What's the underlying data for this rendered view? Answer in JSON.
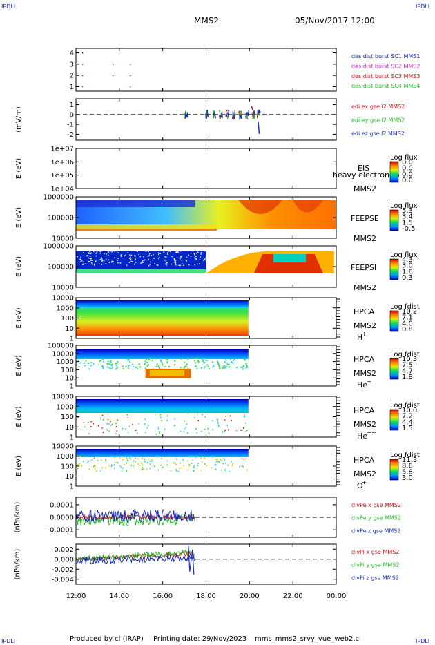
{
  "corner_label": "IPDLI",
  "header": {
    "spacecraft": "MMS2",
    "datetime": "05/Nov/2017 12:00"
  },
  "footer": {
    "produced_by": "Produced by cl (IRAP)",
    "printing_date": "Printing date: 29/Nov/2023",
    "file": "mms_mms2_srvy_vue_web2.cl"
  },
  "chart_data": {
    "type": "stacked_timeseries",
    "x_ticks": [
      "12:00",
      "14:00",
      "16:00",
      "18:00",
      "20:00",
      "22:00",
      "00:00"
    ],
    "x_range_hours": [
      12,
      24
    ],
    "panels": [
      {
        "id": "des-dist",
        "type": "scatter",
        "ylabel": "",
        "yticks": [
          "1",
          "2",
          "3",
          "4"
        ],
        "ylim": [
          0.6,
          4.4
        ],
        "legend": [
          {
            "text": "des dist burst SC1 MMS1",
            "color": "#1a2bbf"
          },
          {
            "text": "des dist burst SC2 MMS2",
            "color": "#cc22cc"
          },
          {
            "text": "des dist burst SC3 MMS3",
            "color": "#cc1111"
          },
          {
            "text": "des dist burst SC4 MMS4",
            "color": "#22bb22"
          }
        ],
        "points": [
          {
            "t": 12.3,
            "y": 4,
            "color": "#1a2bbf"
          },
          {
            "t": 12.3,
            "y": 3,
            "color": "#cc22cc"
          },
          {
            "t": 12.3,
            "y": 2,
            "color": "#cc1111"
          },
          {
            "t": 12.3,
            "y": 1,
            "color": "#22bb22"
          },
          {
            "t": 13.7,
            "y": 3,
            "color": "#cc22cc"
          },
          {
            "t": 13.7,
            "y": 2,
            "color": "#cc1111"
          },
          {
            "t": 14.5,
            "y": 3,
            "color": "#cc22cc"
          },
          {
            "t": 14.5,
            "y": 2,
            "color": "#cc1111"
          },
          {
            "t": 14.5,
            "y": 1,
            "color": "#22bb22"
          }
        ]
      },
      {
        "id": "edi-e",
        "type": "line",
        "ylabel": "(mV/m)",
        "yticks": [
          "1",
          "0",
          "-1",
          "-2"
        ],
        "ylim": [
          -2.6,
          1.6
        ],
        "legend": [
          {
            "text": "edi ex gse l2 MMS2",
            "color": "#cc1111"
          },
          {
            "text": "edi ey gse l2 MMS2",
            "color": "#22bb22"
          },
          {
            "text": "edi ez gse l2 MMS2",
            "color": "#1a2bbf"
          }
        ]
      },
      {
        "id": "eis",
        "type": "spectrogram",
        "ylabel": "E (eV)",
        "yticks": [
          "1e+07",
          "1e+06",
          "1e+05",
          "1e+04"
        ],
        "labels": [
          "EIS",
          "MMS2"
        ],
        "overlay_text": "heavy electron to",
        "colorbar": {
          "title": "Log flux",
          "ticks": [
            "0.0",
            "0.0",
            "0.0",
            "0.0"
          ]
        }
      },
      {
        "id": "feepse",
        "type": "spectrogram",
        "ylabel": "E (eV)",
        "yticks": [
          "1000000",
          "100000",
          "10000"
        ],
        "labels": [
          "FEEPSE",
          "MMS2"
        ],
        "colorbar": {
          "title": "Log flux",
          "ticks": [
            "5.3",
            "3.4",
            "1.5",
            "-0.5"
          ]
        }
      },
      {
        "id": "feepsi",
        "type": "spectrogram",
        "ylabel": "E (eV)",
        "yticks": [
          "1000000",
          "100000",
          "10000"
        ],
        "labels": [
          "FEEPSI",
          "MMS2"
        ],
        "colorbar": {
          "title": "Log flux",
          "ticks": [
            "4.3",
            "3.0",
            "1.6",
            "0.3"
          ]
        }
      },
      {
        "id": "hpca-h",
        "type": "spectrogram",
        "ylabel": "E (eV)",
        "yticks": [
          "10000",
          "1000",
          "100",
          "10",
          "1"
        ],
        "labels": [
          "HPCA",
          "MMS2"
        ],
        "species": "H",
        "species_charge": "+",
        "colorbar": {
          "title": "Log fdist",
          "ticks": [
            "10.2",
            "7.1",
            "4.0",
            "0.8"
          ]
        }
      },
      {
        "id": "hpca-he1",
        "type": "spectrogram",
        "ylabel": "E (eV)",
        "yticks": [
          "100000",
          "10000",
          "1000",
          "100",
          "10",
          "1"
        ],
        "labels": [
          "HPCA",
          "MMS2"
        ],
        "species": "He",
        "species_charge": "+",
        "colorbar": {
          "title": "Log fdist",
          "ticks": [
            "10.3",
            "7.5",
            "4.7",
            "1.8"
          ]
        }
      },
      {
        "id": "hpca-he2",
        "type": "spectrogram",
        "ylabel": "E (eV)",
        "yticks": [
          "10000",
          "1000",
          "100",
          "10",
          "1"
        ],
        "labels": [
          "HPCA",
          "MMS2"
        ],
        "species": "He",
        "species_charge": "++",
        "colorbar": {
          "title": "Log fdist",
          "ticks": [
            "10.0",
            "7.2",
            "4.4",
            "1.5"
          ]
        }
      },
      {
        "id": "hpca-o",
        "type": "spectrogram",
        "ylabel": "E (eV)",
        "yticks": [
          "10000",
          "1000",
          "100",
          "10",
          "1"
        ],
        "labels": [
          "HPCA",
          "MMS2"
        ],
        "species": "O",
        "species_charge": "+",
        "colorbar": {
          "title": "Log fdist",
          "ticks": [
            "11.3",
            "8.6",
            "5.8",
            "3.0"
          ]
        }
      },
      {
        "id": "divpe",
        "type": "line",
        "ylabel": "(nPa/km)",
        "yticks": [
          "0.0001",
          "0.0000",
          "-0.0001"
        ],
        "ylim": [
          -0.00016,
          0.00016
        ],
        "legend": [
          {
            "text": "divPe x gse MMS2",
            "color": "#cc1111"
          },
          {
            "text": "divPe y gse MMS2",
            "color": "#22bb22"
          },
          {
            "text": "divPe z gse MMS2",
            "color": "#1a2bbf"
          }
        ]
      },
      {
        "id": "divpi",
        "type": "line",
        "ylabel": "(nPa/km)",
        "yticks": [
          "0.002",
          "0.000",
          "-0.002",
          "-0.004"
        ],
        "ylim": [
          -0.005,
          0.003
        ],
        "legend": [
          {
            "text": "divPi x gse MMS2",
            "color": "#cc1111"
          },
          {
            "text": "divPi y gse MMS2",
            "color": "#22bb22"
          },
          {
            "text": "divPi z gse MMS2",
            "color": "#1a2bbf"
          }
        ]
      }
    ]
  }
}
